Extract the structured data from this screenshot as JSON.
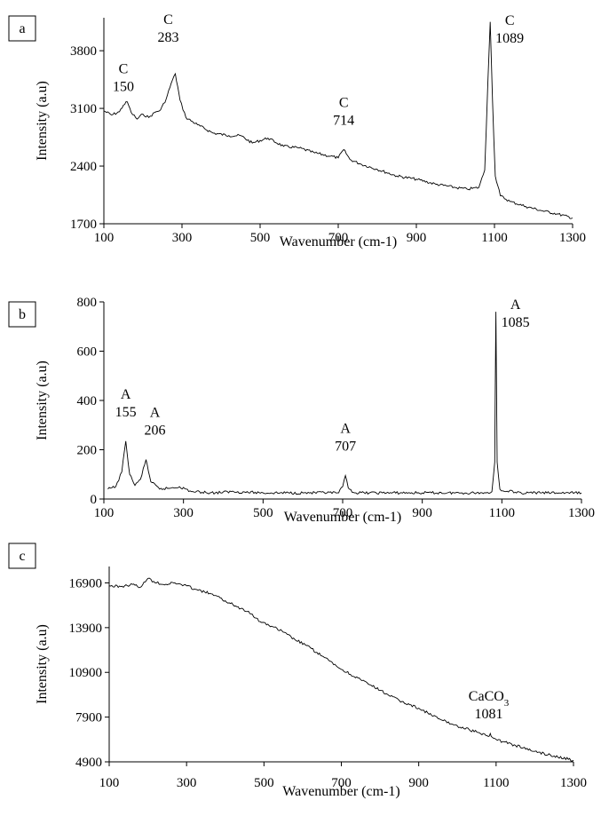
{
  "chart_data": [
    {
      "type": "line",
      "panel_label": "a",
      "xlabel": "Wavenumber (cm-1)",
      "ylabel": "Intensity (a.u)",
      "xlim": [
        100,
        1300
      ],
      "ylim": [
        1700,
        4200
      ],
      "xticks": [
        100,
        300,
        500,
        700,
        900,
        1100,
        1300
      ],
      "yticks": [
        1700,
        2400,
        3100,
        3800
      ],
      "series": [
        {
          "x": [
            100,
            120,
            140,
            150,
            160,
            170,
            185,
            200,
            215,
            230,
            245,
            260,
            272,
            283,
            295,
            310,
            340,
            380,
            420,
            450,
            480,
            520,
            560,
            600,
            640,
            680,
            700,
            714,
            730,
            760,
            800,
            850,
            900,
            950,
            1000,
            1030,
            1060,
            1075,
            1083,
            1089,
            1095,
            1102,
            1115,
            1140,
            1180,
            1220,
            1260,
            1300
          ],
          "y": [
            3070,
            3020,
            3060,
            3140,
            3180,
            3050,
            2970,
            3030,
            2990,
            3050,
            3080,
            3220,
            3400,
            3520,
            3200,
            2990,
            2900,
            2800,
            2770,
            2770,
            2680,
            2740,
            2640,
            2620,
            2560,
            2520,
            2500,
            2600,
            2480,
            2420,
            2360,
            2280,
            2240,
            2180,
            2140,
            2120,
            2140,
            2350,
            3400,
            4150,
            3200,
            2280,
            2040,
            1970,
            1910,
            1860,
            1820,
            1770
          ]
        }
      ],
      "annotations": [
        {
          "letter": "C",
          "value": "150",
          "x": 150
        },
        {
          "letter": "C",
          "value": "283",
          "x": 283
        },
        {
          "letter": "C",
          "value": "714",
          "x": 714
        },
        {
          "letter": "C",
          "value": "1089",
          "x": 1089
        }
      ]
    },
    {
      "type": "line",
      "panel_label": "b",
      "xlabel": "Wavenumber (cm-1)",
      "ylabel": "Intensity (a.u)",
      "xlim": [
        100,
        1300
      ],
      "ylim": [
        0,
        800
      ],
      "xticks": [
        100,
        300,
        500,
        700,
        900,
        1100,
        1300
      ],
      "yticks": [
        0,
        200,
        400,
        600,
        800
      ],
      "series": [
        {
          "x": [
            110,
            130,
            145,
            155,
            165,
            178,
            192,
            206,
            218,
            240,
            270,
            290,
            320,
            380,
            420,
            500,
            600,
            690,
            700,
            707,
            714,
            730,
            800,
            900,
            1000,
            1060,
            1075,
            1082,
            1085,
            1088,
            1095,
            1110,
            1120,
            1130,
            1200,
            1300
          ],
          "y": [
            40,
            50,
            110,
            235,
            100,
            55,
            80,
            160,
            70,
            40,
            45,
            50,
            30,
            25,
            30,
            25,
            25,
            25,
            50,
            95,
            45,
            25,
            25,
            25,
            25,
            25,
            30,
            150,
            760,
            150,
            40,
            30,
            35,
            25,
            25,
            25
          ]
        }
      ],
      "annotations": [
        {
          "letter": "A",
          "value": "155",
          "x": 155
        },
        {
          "letter": "A",
          "value": "206",
          "x": 206
        },
        {
          "letter": "A",
          "value": "707",
          "x": 707
        },
        {
          "letter": "A",
          "value": "1085",
          "x": 1085
        }
      ]
    },
    {
      "type": "line",
      "panel_label": "c",
      "xlabel": "Wavenumber (cm-1)",
      "ylabel": "Intensity (a.u)",
      "xlim": [
        100,
        1300
      ],
      "ylim": [
        4900,
        18000
      ],
      "xticks": [
        100,
        300,
        500,
        700,
        900,
        1100,
        1300
      ],
      "yticks": [
        4900,
        7900,
        10900,
        13900,
        16900
      ],
      "series": [
        {
          "x": [
            100,
            130,
            160,
            180,
            200,
            215,
            240,
            270,
            300,
            330,
            360,
            400,
            430,
            460,
            490,
            520,
            550,
            580,
            610,
            650,
            700,
            750,
            800,
            850,
            900,
            950,
            1000,
            1050,
            1080,
            1085,
            1090,
            1100,
            1150,
            1200,
            1250,
            1300
          ],
          "y": [
            16700,
            16650,
            16800,
            16600,
            17200,
            17000,
            16800,
            16900,
            16700,
            16400,
            16200,
            15700,
            15300,
            15000,
            14300,
            14000,
            13600,
            13100,
            12700,
            12000,
            11100,
            10400,
            9700,
            9000,
            8500,
            7800,
            7300,
            6900,
            6600,
            6800,
            6550,
            6400,
            6000,
            5600,
            5300,
            5000
          ]
        }
      ],
      "annotations": [
        {
          "letter": "CaCO",
          "sub": "3",
          "value": "1081",
          "x": 1081
        }
      ]
    }
  ]
}
